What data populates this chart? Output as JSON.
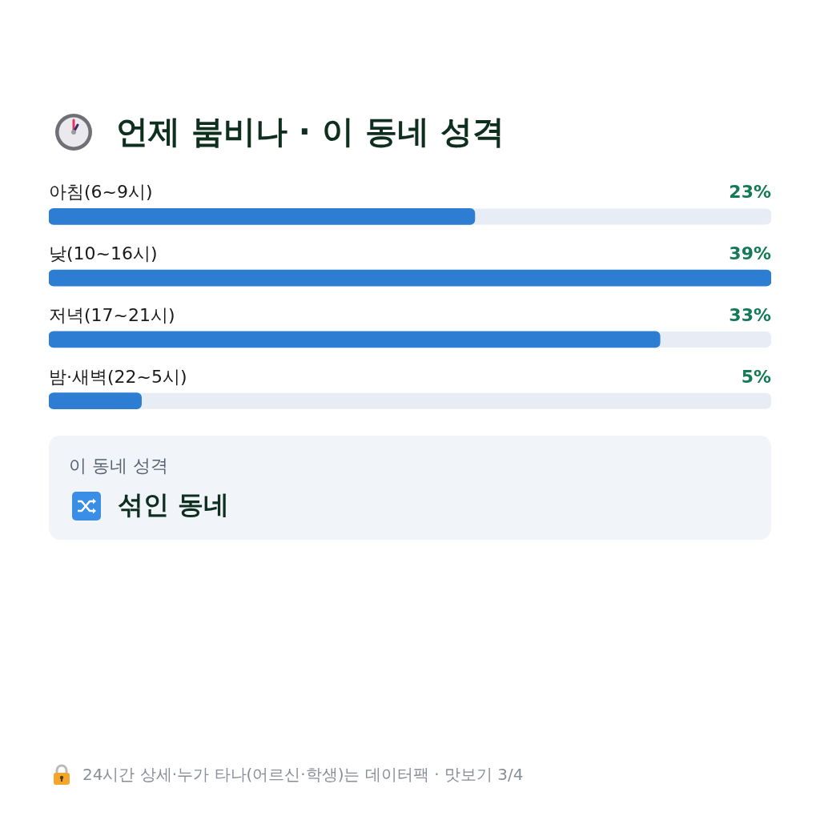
{
  "chart_data": {
    "type": "bar",
    "orientation": "horizontal",
    "title": "언제 붐비나 · 이 동네 성격",
    "categories": [
      "아침(6~9시)",
      "낮(10~16시)",
      "저녁(17~21시)",
      "밤·새벽(22~5시)"
    ],
    "values": [
      23,
      39,
      33,
      5
    ],
    "value_labels": [
      "23%",
      "39%",
      "33%",
      "5%"
    ],
    "color": "#2d7dd2",
    "tick_labels": "y",
    "annotations": [
      "이 동네 성격",
      "섞인 동네",
      "24시간 상세·누가 타나(어르신·학생)는 데이터팩 · 맛보기 3/4"
    ]
  }
}
